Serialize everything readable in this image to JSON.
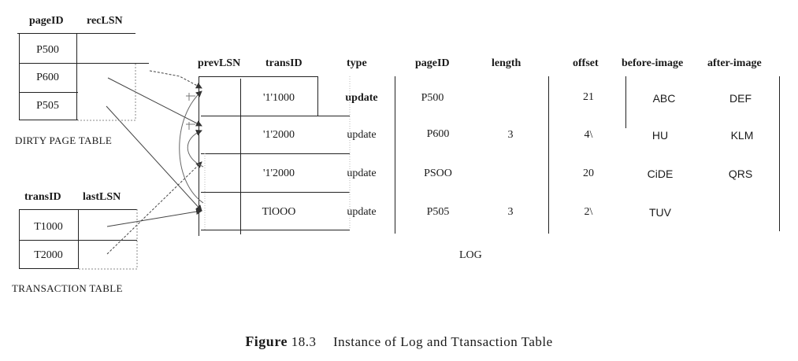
{
  "dirty_page_table": {
    "headers": [
      "pageID",
      "recLSN"
    ],
    "rows": [
      "P500",
      "P600",
      "P505"
    ],
    "label": "DIRTY PAGE TABLE"
  },
  "transaction_table": {
    "headers": [
      "transID",
      "lastLSN"
    ],
    "rows": [
      "T1000",
      "T2000"
    ],
    "label": "TRANSACTION TABLE"
  },
  "log": {
    "headers": [
      "prevLSN",
      "transID",
      "type",
      "pageID",
      "length",
      "offset",
      "before-image",
      "after-image"
    ],
    "rows": [
      {
        "transID": "'1'1000",
        "type": "update",
        "pageID": "P500",
        "length": "",
        "offset": "21",
        "before": "ABC",
        "after": "DEF"
      },
      {
        "transID": "'1'2000",
        "type": "update",
        "pageID": "P600",
        "length": "3",
        "offset": "4\\",
        "before": "HU",
        "after": "KLM"
      },
      {
        "transID": "'1'2000",
        "type": "update",
        "pageID": "PSOO",
        "length": "",
        "offset": "20",
        "before": "CiDE",
        "after": "QRS"
      },
      {
        "transID": "TlOOO",
        "type": "update",
        "pageID": "P505",
        "length": "3",
        "offset": "2\\",
        "before": "TUV",
        "after": ""
      }
    ],
    "label": "LOG"
  },
  "caption": {
    "figure_word": "Figure",
    "number": "18.3",
    "text": "Instance of Log and Ttansaction Table"
  }
}
